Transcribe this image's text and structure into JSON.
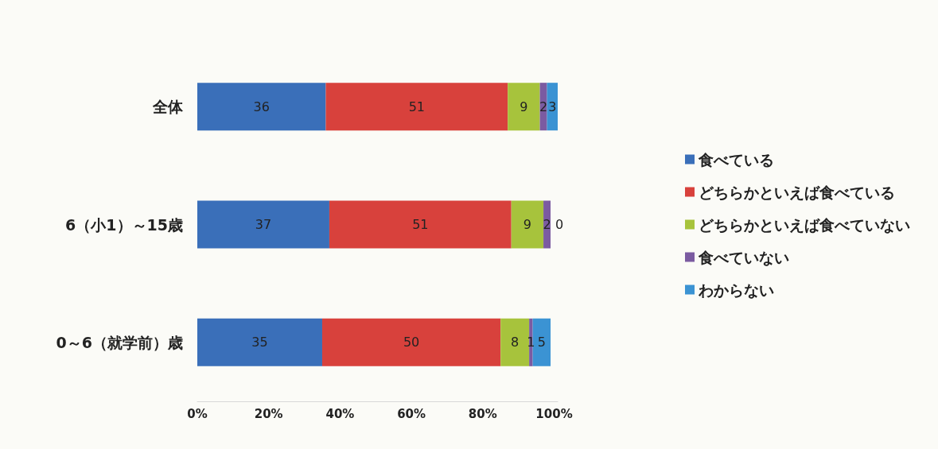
{
  "chart_data": {
    "type": "bar",
    "orientation": "horizontal",
    "stacked": true,
    "data_labels": true,
    "legend": "right",
    "grid": false,
    "categories": [
      "全体",
      "6（小1）～15歳",
      "0～6（就学前）歳"
    ],
    "series": [
      {
        "name": "食べている",
        "color": "#3a6fb9",
        "values": [
          36,
          37,
          35
        ]
      },
      {
        "name": "どちらかといえば食べている",
        "color": "#d8413c",
        "values": [
          51,
          51,
          50
        ]
      },
      {
        "name": "どちらかといえば食べていない",
        "color": "#a7c33c",
        "values": [
          9,
          9,
          8
        ]
      },
      {
        "name": "食べていない",
        "color": "#7b5ba1",
        "values": [
          2,
          2,
          1
        ]
      },
      {
        "name": "わからない",
        "color": "#3b93d3",
        "values": [
          3,
          0,
          5
        ]
      }
    ],
    "xlim": [
      0,
      101
    ],
    "xticks": [
      {
        "value": 0,
        "label": "0%"
      },
      {
        "value": 20,
        "label": "20%"
      },
      {
        "value": 40,
        "label": "40%"
      },
      {
        "value": 60,
        "label": "60%"
      },
      {
        "value": 80,
        "label": "80%"
      },
      {
        "value": 100,
        "label": "100%"
      }
    ]
  }
}
